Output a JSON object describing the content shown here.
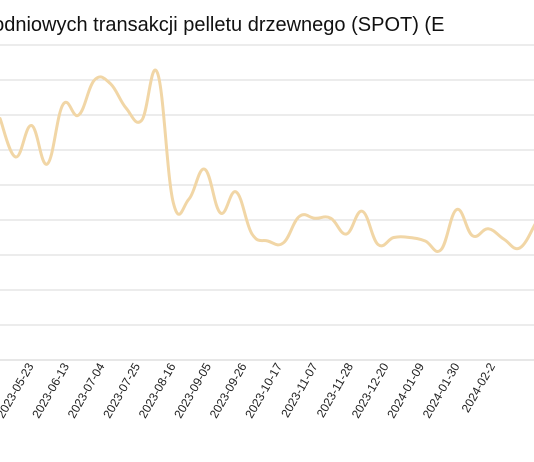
{
  "chart_data": {
    "type": "line",
    "title": "ygodniowych transakcji pelletu drzewnego (SPOT) (E",
    "xlabel": "",
    "ylabel": "",
    "grid": "horizontal",
    "x_tick_labels": [
      "2023-05-23",
      "2023-06-13",
      "2023-07-04",
      "2023-07-25",
      "2023-08-16",
      "2023-09-05",
      "2023-09-26",
      "2023-10-17",
      "2023-11-07",
      "2023-11-28",
      "2023-12-20",
      "2024-01-09",
      "2024-01-30",
      "2024-02-2"
    ],
    "color": "#f1d6a6",
    "series": [
      {
        "values": [
          6.9,
          5.8,
          6.7,
          5.6,
          7.3,
          7.0,
          8.0,
          7.9,
          7.2,
          6.85,
          8.2,
          4.5,
          4.6,
          5.45,
          4.2,
          4.8,
          3.6,
          3.4,
          3.35,
          4.1,
          4.05,
          4.05,
          3.6,
          4.25,
          3.3,
          3.5,
          3.5,
          3.4,
          3.15,
          4.3,
          3.55,
          3.75,
          3.45,
          3.2,
          3.9
        ]
      }
    ]
  }
}
